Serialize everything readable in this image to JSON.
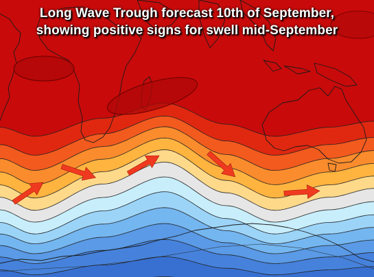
{
  "title": {
    "line1": "Long Wave Trough forecast 10th of September,",
    "line2": "showing positive signs for swell mid-September"
  },
  "colors": {
    "bands": [
      "#c80a0a",
      "#e02810",
      "#f25a1e",
      "#fa8c2d",
      "#ffb440",
      "#ffd98a",
      "#e6e6e6",
      "#c8eefc",
      "#9cd4f8",
      "#74b6f0",
      "#5a9ae6",
      "#4682dc",
      "#3870d2",
      "#2e60c8"
    ],
    "arrow": "#f03a20",
    "pressure_cell": "#b00808"
  },
  "map": {
    "type": "long wave trough forecast",
    "arrows": [
      {
        "name": "arrow-southwest-atlantic"
      },
      {
        "name": "arrow-south-atlantic"
      },
      {
        "name": "arrow-south-africa"
      },
      {
        "name": "arrow-southern-indian-ocean"
      },
      {
        "name": "arrow-south-of-australia"
      }
    ]
  }
}
